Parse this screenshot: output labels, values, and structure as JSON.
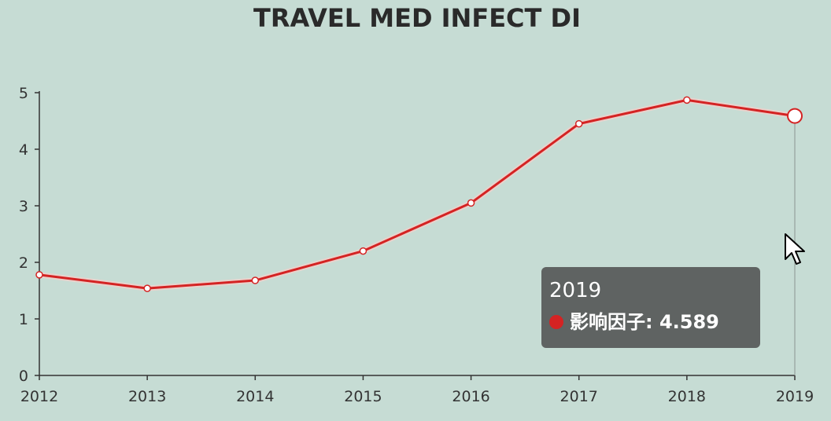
{
  "colors": {
    "background": "#c6dcd4",
    "series": "#d42323",
    "axis": "#333333",
    "tooltip_bg": "#5f6362"
  },
  "tooltip": {
    "title": "2019",
    "series_name": "影响因子",
    "value_text": "4.589",
    "icon": "series-dot-icon"
  },
  "cursor": {
    "icon": "mouse-pointer-icon"
  },
  "chart_data": {
    "type": "line",
    "title": "TRAVEL MED INFECT DI",
    "xlabel": "",
    "ylabel": "",
    "x": [
      "2012",
      "2013",
      "2014",
      "2015",
      "2016",
      "2017",
      "2018",
      "2019"
    ],
    "series": [
      {
        "name": "影响因子",
        "values": [
          1.78,
          1.54,
          1.68,
          2.2,
          3.05,
          4.45,
          4.87,
          4.589
        ]
      }
    ],
    "ylim": [
      0,
      5
    ],
    "yticks": [
      0,
      1,
      2,
      3,
      4,
      5
    ],
    "grid": false,
    "legend": "none",
    "highlighted_index": 7
  }
}
